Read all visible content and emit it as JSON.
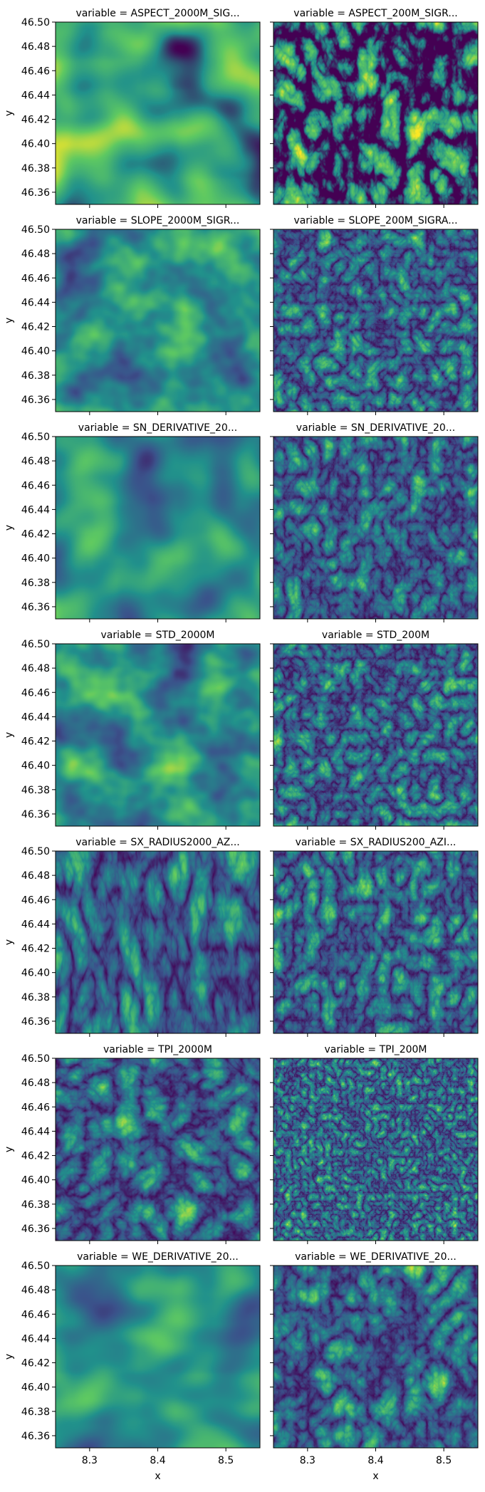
{
  "chart_data": {
    "type": "heatmap",
    "facet_title_prefix": "variable = ",
    "xlabel": "x",
    "ylabel": "y",
    "xlim": [
      8.25,
      8.55
    ],
    "ylim": [
      46.35,
      46.5
    ],
    "x_ticks": [
      8.3,
      8.4,
      8.5
    ],
    "x_tick_labels": [
      "8.3",
      "8.4",
      "8.5"
    ],
    "y_ticks": [
      46.36,
      46.38,
      46.4,
      46.42,
      46.44,
      46.46,
      46.48,
      46.5
    ],
    "y_tick_labels": [
      "46.36",
      "46.38",
      "46.40",
      "46.42",
      "46.44",
      "46.46",
      "46.48",
      "46.50"
    ],
    "colormap": "viridis",
    "colors": {
      "low": "#440154",
      "mid": "#21918c",
      "high": "#fde725"
    },
    "grid": false,
    "legend": "none",
    "panels": [
      [
        "ASPECT_2000M_SIG...",
        "ASPECT_200M_SIGR..."
      ],
      [
        "SLOPE_2000M_SIGR...",
        "SLOPE_200M_SIGRA..."
      ],
      [
        "SN_DERIVATIVE_20...",
        "SN_DERIVATIVE_20..."
      ],
      [
        "STD_2000M",
        "STD_200M"
      ],
      [
        "SX_RADIUS2000_AZ...",
        "SX_RADIUS200_AZI..."
      ],
      [
        "TPI_2000M",
        "TPI_200M"
      ],
      [
        "WE_DERIVATIVE_20...",
        "WE_DERIVATIVE_20..."
      ]
    ]
  }
}
